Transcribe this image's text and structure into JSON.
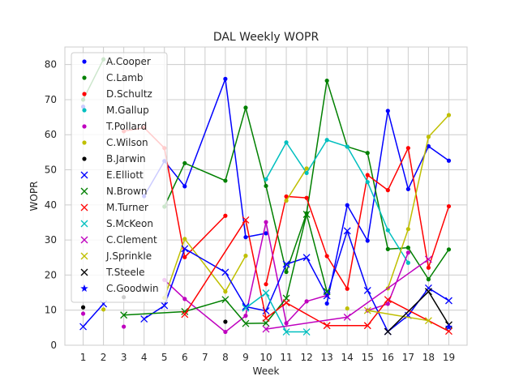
{
  "chart_data": {
    "type": "line",
    "title": "DAL Weekly WOPR",
    "xlabel": "Week",
    "ylabel": "WOPR",
    "xlim": [
      0.1,
      19.9
    ],
    "ylim": [
      0,
      85
    ],
    "xticks": [
      1,
      2,
      3,
      4,
      5,
      6,
      7,
      8,
      9,
      10,
      11,
      12,
      13,
      14,
      15,
      16,
      17,
      18,
      19
    ],
    "yticks": [
      0,
      10,
      20,
      30,
      40,
      50,
      60,
      70,
      80
    ],
    "grid": true,
    "legend_position": "upper-left",
    "series": [
      {
        "name": "A.Cooper",
        "color": "#0000ff",
        "marker": "dot",
        "points": [
          [
            1,
            68.0
          ],
          [
            2,
            null
          ],
          [
            3,
            null
          ],
          [
            4,
            42.5
          ],
          [
            5,
            52.5
          ],
          [
            6,
            45.3
          ],
          [
            8,
            75.9
          ],
          [
            9,
            30.8
          ],
          [
            10,
            31.9
          ],
          [
            11,
            null
          ],
          [
            12,
            null
          ],
          [
            13,
            11.9
          ],
          [
            14,
            39.9
          ],
          [
            15,
            29.8
          ],
          [
            16,
            66.8
          ],
          [
            17,
            44.5
          ],
          [
            18,
            56.7
          ],
          [
            19,
            52.6
          ]
        ]
      },
      {
        "name": "C.Lamb",
        "color": "#008000",
        "marker": "dot",
        "points": [
          [
            1,
            70.0
          ],
          [
            2,
            81.5
          ],
          [
            3,
            null
          ],
          [
            4,
            null
          ],
          [
            5,
            39.5
          ],
          [
            6,
            51.9
          ],
          [
            8,
            46.9
          ],
          [
            9,
            67.7
          ],
          [
            10,
            45.4
          ],
          [
            11,
            20.9
          ],
          [
            12,
            37.6
          ],
          [
            13,
            75.4
          ],
          [
            14,
            56.6
          ],
          [
            15,
            54.8
          ],
          [
            16,
            27.4
          ],
          [
            17,
            27.8
          ],
          [
            18,
            18.8
          ],
          [
            19,
            27.3
          ]
        ]
      },
      {
        "name": "D.Schultz",
        "color": "#ff0000",
        "marker": "dot",
        "points": [
          [
            1,
            null
          ],
          [
            2,
            null
          ],
          [
            3,
            61.0
          ],
          [
            4,
            62.0
          ],
          [
            5,
            56.2
          ],
          [
            6,
            25.1
          ],
          [
            8,
            36.9
          ],
          [
            9,
            null
          ],
          [
            10,
            17.4
          ],
          [
            11,
            42.4
          ],
          [
            12,
            42.0
          ],
          [
            13,
            25.4
          ],
          [
            14,
            16.1
          ],
          [
            15,
            48.5
          ],
          [
            16,
            44.2
          ],
          [
            17,
            56.2
          ],
          [
            18,
            22.1
          ],
          [
            19,
            39.6
          ]
        ]
      },
      {
        "name": "M.Gallup",
        "color": "#00bfbf",
        "marker": "dot",
        "points": [
          [
            10,
            47.3
          ],
          [
            11,
            57.8
          ],
          [
            12,
            49.1
          ],
          [
            13,
            58.5
          ],
          [
            14,
            56.6
          ],
          [
            15,
            46.5
          ],
          [
            16,
            32.8
          ],
          [
            17,
            23.5
          ]
        ]
      },
      {
        "name": "T.Pollard",
        "color": "#bf00bf",
        "marker": "dot",
        "points": [
          [
            1,
            9.0
          ],
          [
            2,
            null
          ],
          [
            3,
            5.3
          ],
          [
            4,
            null
          ],
          [
            5,
            18.6
          ],
          [
            6,
            13.2
          ],
          [
            8,
            3.8
          ],
          [
            9,
            8.4
          ],
          [
            10,
            35.1
          ],
          [
            11,
            6.3
          ],
          [
            12,
            12.5
          ],
          [
            13,
            14.2
          ],
          [
            14,
            null
          ],
          [
            15,
            9.9
          ],
          [
            16,
            11.8
          ],
          [
            17,
            26.4
          ]
        ]
      },
      {
        "name": "C.Wilson",
        "color": "#bfbf00",
        "marker": "dot",
        "points": [
          [
            1,
            null
          ],
          [
            2,
            10.2
          ],
          [
            3,
            null
          ],
          [
            4,
            null
          ],
          [
            5,
            13.5
          ],
          [
            6,
            30.3
          ],
          [
            8,
            15.3
          ],
          [
            9,
            25.5
          ],
          [
            10,
            null
          ],
          [
            11,
            41.2
          ],
          [
            12,
            50.4
          ],
          [
            13,
            null
          ],
          [
            14,
            10.5
          ],
          [
            15,
            null
          ],
          [
            16,
            16.2
          ],
          [
            17,
            33.1
          ],
          [
            18,
            59.4
          ],
          [
            19,
            65.6
          ]
        ]
      },
      {
        "name": "B.Jarwin",
        "color": "#000000",
        "marker": "dot",
        "points": [
          [
            1,
            10.8
          ],
          [
            2,
            null
          ],
          [
            3,
            13.7
          ],
          [
            4,
            null
          ],
          [
            5,
            null
          ],
          [
            6,
            null
          ],
          [
            8,
            6.7
          ]
        ]
      },
      {
        "name": "E.Elliott",
        "color": "#0000ff",
        "marker": "x",
        "points": [
          [
            1,
            5.3
          ],
          [
            2,
            11.8
          ],
          [
            3,
            null
          ],
          [
            4,
            7.5
          ],
          [
            5,
            11.3
          ],
          [
            6,
            27.5
          ],
          [
            8,
            20.8
          ],
          [
            9,
            11.0
          ],
          [
            10,
            9.8
          ],
          [
            11,
            23.1
          ],
          [
            12,
            25.0
          ],
          [
            13,
            14.1
          ],
          [
            14,
            32.6
          ],
          [
            15,
            15.6
          ],
          [
            16,
            3.9
          ],
          [
            17,
            8.5
          ],
          [
            18,
            16.3
          ],
          [
            19,
            12.7
          ]
        ]
      },
      {
        "name": "N.Brown",
        "color": "#008000",
        "marker": "x",
        "points": [
          [
            3,
            8.6
          ],
          [
            6,
            9.6
          ],
          [
            8,
            13.0
          ],
          [
            9,
            6.2
          ],
          [
            10,
            6.3
          ],
          [
            11,
            13.4
          ],
          [
            12,
            37.3
          ],
          [
            13,
            15.3
          ]
        ]
      },
      {
        "name": "M.Turner",
        "color": "#ff0000",
        "marker": "x",
        "points": [
          [
            6,
            8.8
          ],
          [
            9,
            35.7
          ],
          [
            10,
            7.7
          ],
          [
            11,
            12.1
          ],
          [
            13,
            5.6
          ],
          [
            15,
            5.6
          ],
          [
            16,
            13.0
          ],
          [
            19,
            4.0
          ]
        ]
      },
      {
        "name": "S.McKeon",
        "color": "#00bfbf",
        "marker": "x",
        "points": [
          [
            9,
            10.6
          ],
          [
            10,
            14.9
          ],
          [
            11,
            3.8
          ],
          [
            12,
            3.8
          ]
        ]
      },
      {
        "name": "C.Clement",
        "color": "#bf00bf",
        "marker": "x",
        "points": [
          [
            10,
            4.6
          ],
          [
            14,
            8.0
          ],
          [
            18,
            24.5
          ]
        ]
      },
      {
        "name": "J.Sprinkle",
        "color": "#bfbf00",
        "marker": "x",
        "points": [
          [
            15,
            9.9
          ],
          [
            18,
            7.0
          ]
        ]
      },
      {
        "name": "T.Steele",
        "color": "#000000",
        "marker": "x",
        "points": [
          [
            16,
            3.9
          ],
          [
            18,
            15.3
          ],
          [
            19,
            5.8
          ]
        ]
      },
      {
        "name": "C.Goodwin",
        "color": "#0000ff",
        "marker": "star",
        "points": [
          [
            19,
            5.2
          ]
        ]
      }
    ]
  }
}
